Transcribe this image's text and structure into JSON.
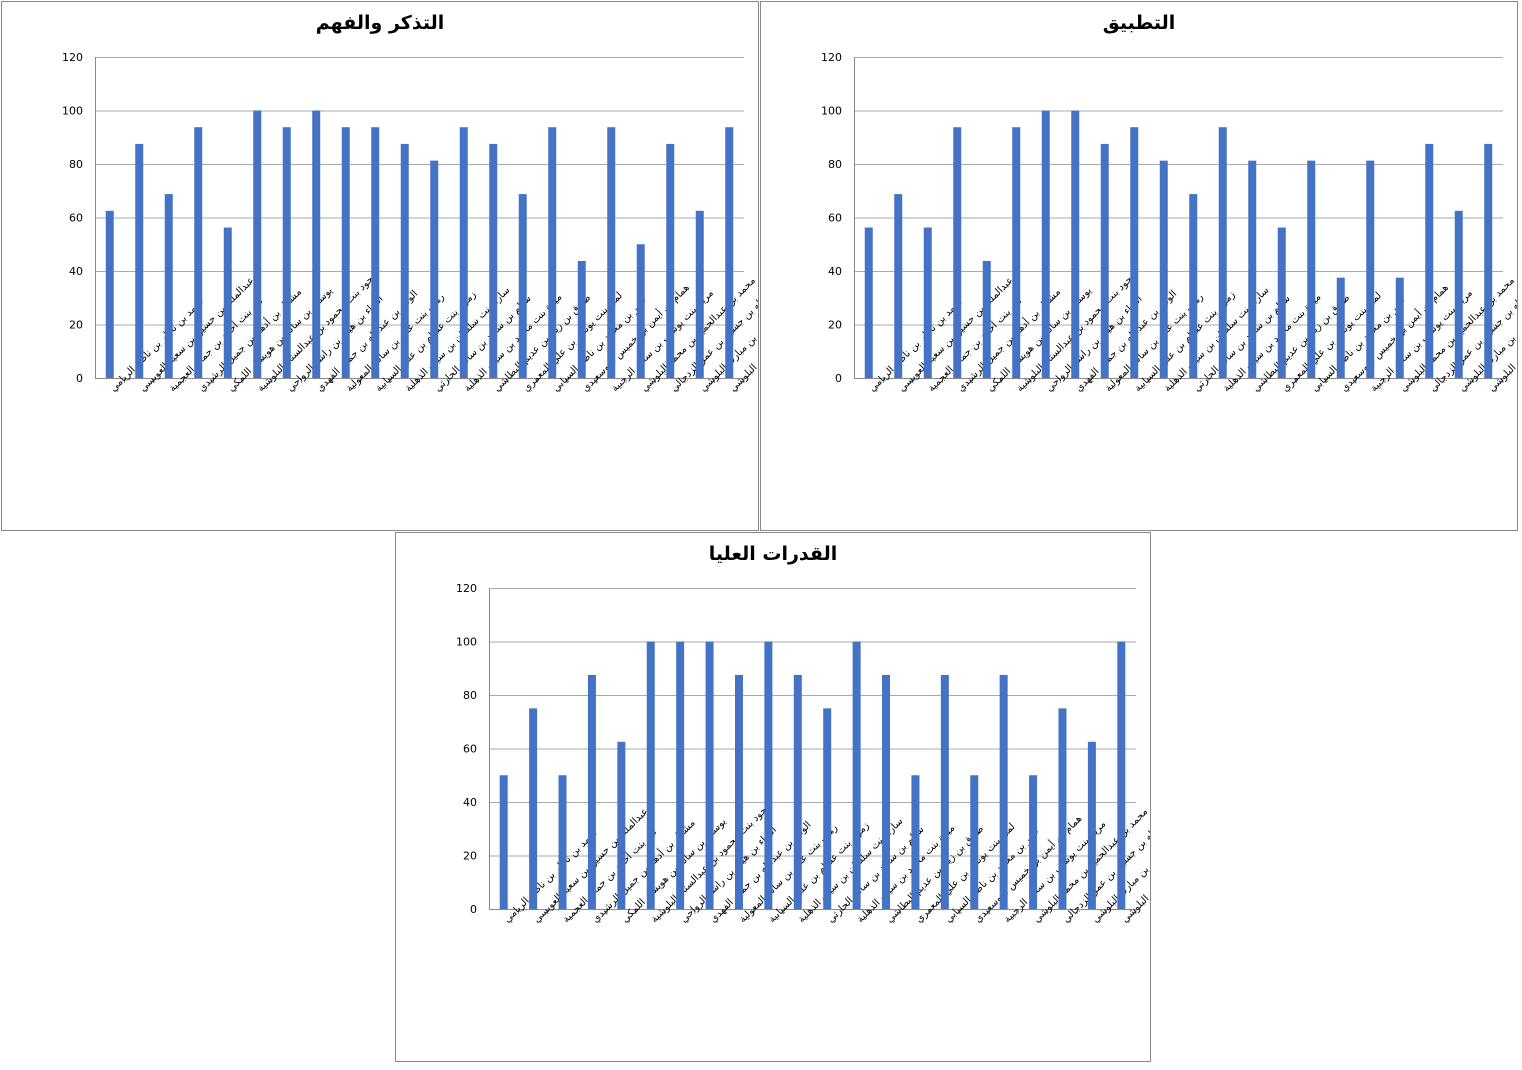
{
  "categories": [
    "أحمد بن ناظر بن ناصر الريامي",
    "عبدالملك بن حسين بن سعيد العويسي",
    "نور بنت أحمد بن جمعه العجمية",
    "مشعل بن أدهم بن جميل الرشيدي",
    "يوسف بن سالم بن هويشل اللمكي",
    "جود بنت محمود بن عبدالستار البلوشية",
    "البراء بن هيثم بن راشد الرواحي",
    "الوليد بن عبدالله بن جمعه الفهدي",
    "رهف بنت علي بن سالم المعولية",
    "زمزم بنت عصام بن علي السيابية",
    "سارة بنت سلطان بن سيف الذهلية",
    "سالم بن سعيد بن سالم الحارثي",
    "ميرة بنت محمد بن سيف الذهلية",
    "طارق بن زياد بن عديم البطاشي",
    "لمى بنت يونس بن علي المعمري",
    "عمر بن محمد بن ناصر السيابي",
    "همام بن أيمن بن خميس البوسعيدي",
    "مريم بنت يوسف بن سعيد الرحبية",
    "محمد بن عبدالحميد بن محمد البلوشي",
    "طه بن حسين بن عمر الزدجالي",
    "استبرق بنت سليم بن مبارك البلوشي",
    "ريم قيس البلوشي"
  ],
  "chart_data": [
    {
      "type": "bar",
      "title": "التذكر والفهم",
      "ylim": [
        0,
        120
      ],
      "yticks": [
        0,
        20,
        40,
        60,
        80,
        100,
        120
      ],
      "grid": true,
      "color": "#4472C4",
      "values": [
        62.5,
        87.5,
        68.75,
        93.75,
        56.25,
        100,
        93.75,
        100,
        93.75,
        93.75,
        87.5,
        81.25,
        93.75,
        87.5,
        68.75,
        93.75,
        43.75,
        93.75,
        50,
        87.5,
        62.5,
        93.75
      ]
    },
    {
      "type": "bar",
      "title": "التطبيق",
      "ylim": [
        0,
        120
      ],
      "yticks": [
        0,
        20,
        40,
        60,
        80,
        100,
        120
      ],
      "grid": true,
      "color": "#4472C4",
      "values": [
        56.25,
        68.75,
        56.25,
        93.75,
        43.75,
        93.75,
        100,
        100,
        87.5,
        93.75,
        81.25,
        68.75,
        93.75,
        81.25,
        56.25,
        81.25,
        37.5,
        81.25,
        37.5,
        87.5,
        62.5,
        87.5
      ]
    },
    {
      "type": "bar",
      "title": "القدرات العليا",
      "ylim": [
        0,
        120
      ],
      "yticks": [
        0,
        20,
        40,
        60,
        80,
        100,
        120
      ],
      "grid": true,
      "color": "#4472C4",
      "values": [
        50,
        75,
        50,
        87.5,
        62.5,
        100,
        100,
        100,
        87.5,
        100,
        87.5,
        75,
        100,
        87.5,
        50,
        87.5,
        50,
        87.5,
        50,
        75,
        62.5,
        100
      ]
    }
  ]
}
